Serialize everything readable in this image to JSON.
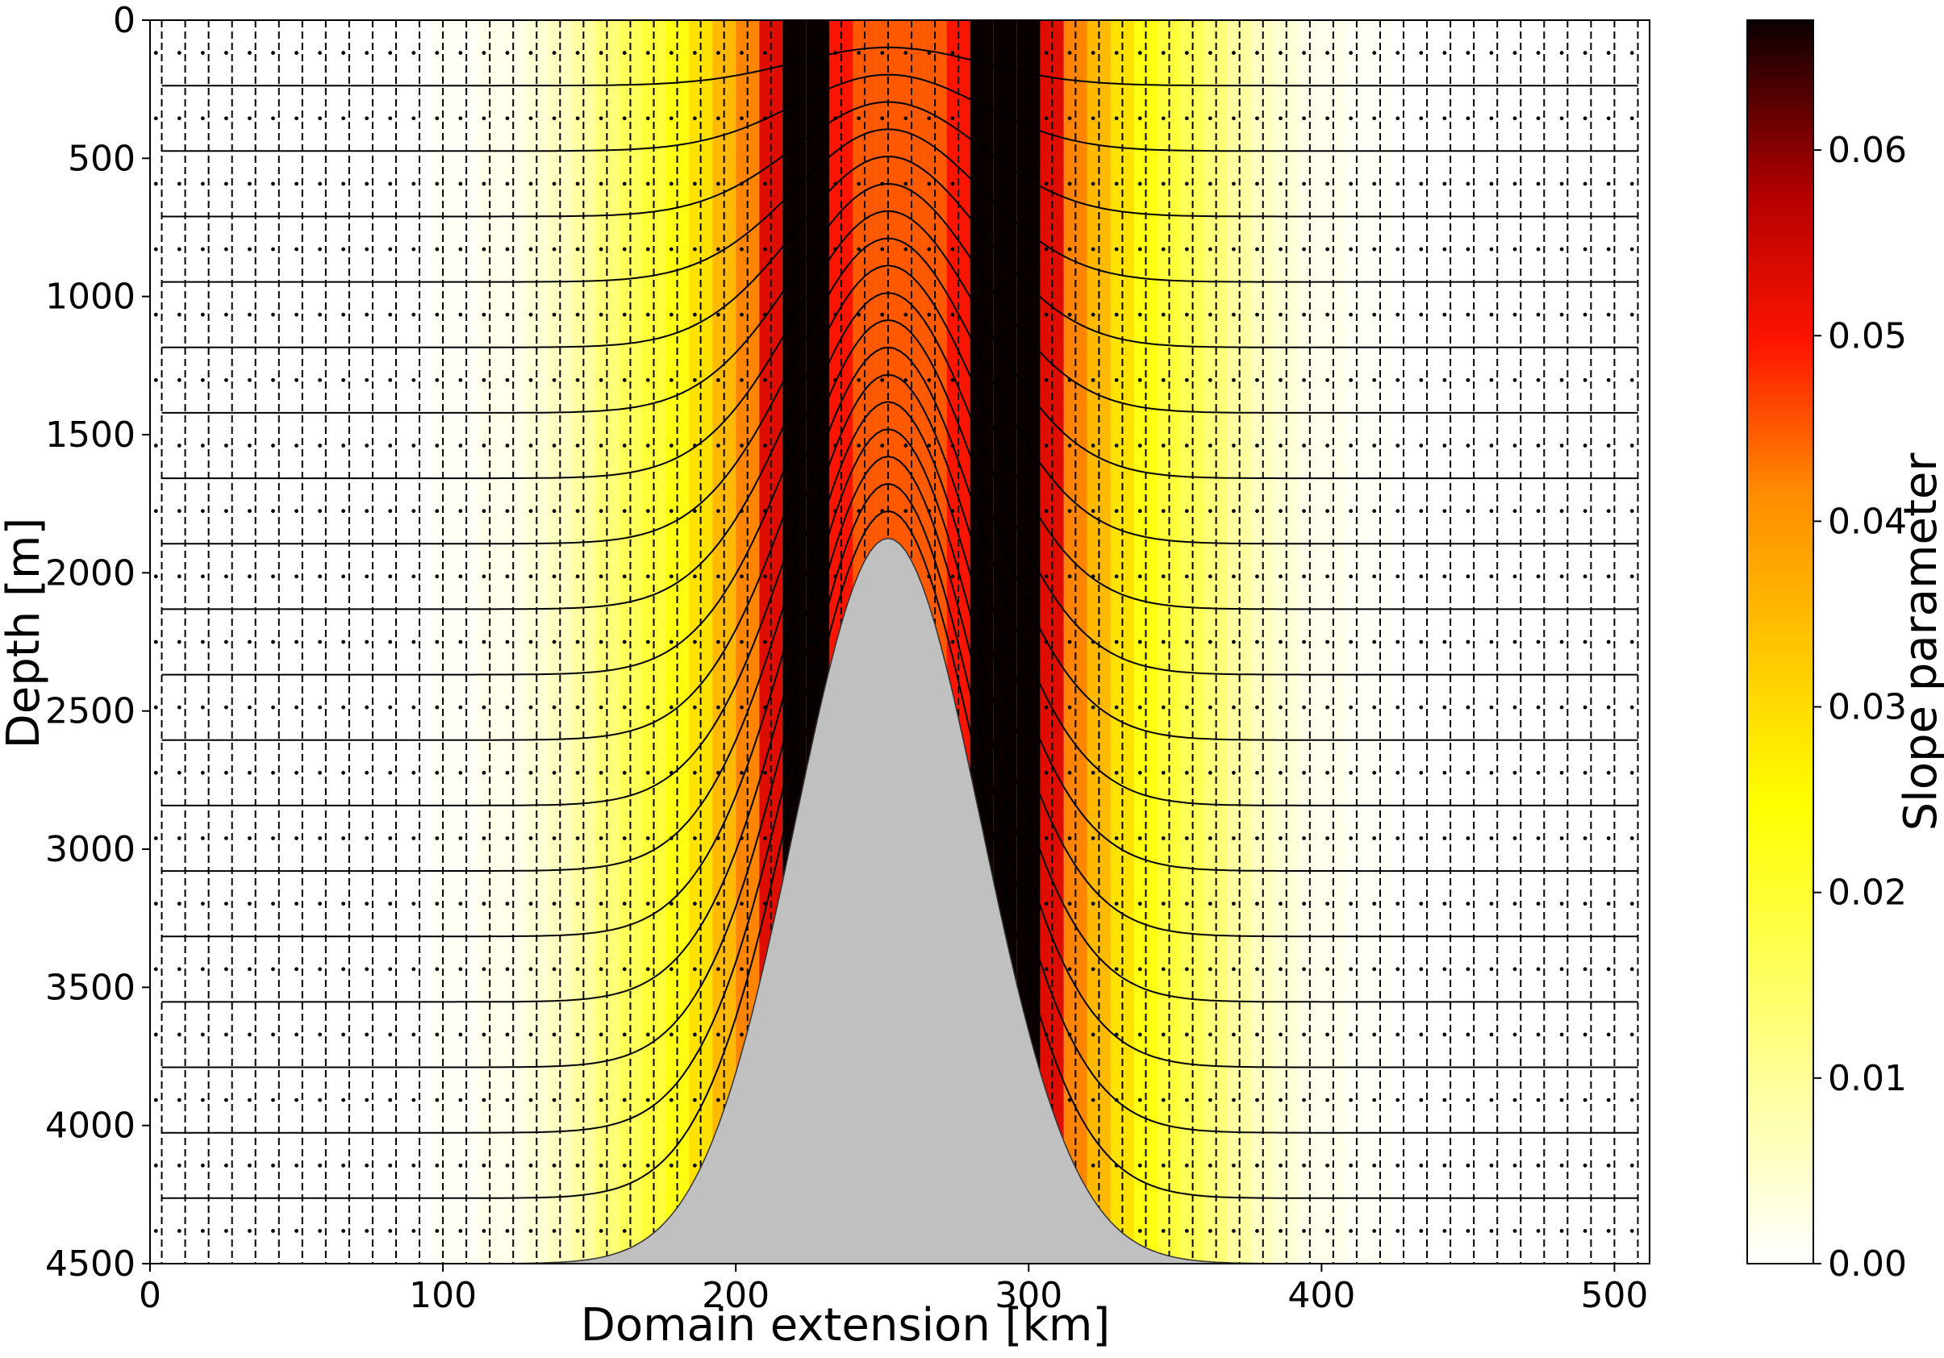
{
  "chart_data": {
    "type": "heatmap",
    "title": "",
    "xlabel": "Domain extension [km]",
    "ylabel": "Depth [m]",
    "colorbar_label": "Slope parameter",
    "xlim": [
      0,
      512
    ],
    "ylim": [
      4500,
      0
    ],
    "x_ticks": [
      0,
      100,
      200,
      300,
      400,
      500
    ],
    "x_tick_labels": [
      "0",
      "100",
      "200",
      "300",
      "400",
      "500"
    ],
    "y_ticks": [
      0,
      500,
      1000,
      1500,
      2000,
      2500,
      3000,
      3500,
      4000,
      4500
    ],
    "y_tick_labels": [
      "0",
      "500",
      "1000",
      "1500",
      "2000",
      "2500",
      "3000",
      "3500",
      "4000",
      "4500"
    ],
    "colorbar_range": [
      0,
      0.067
    ],
    "colorbar_ticks": [
      0.0,
      0.01,
      0.02,
      0.03,
      0.04,
      0.05,
      0.06
    ],
    "colorbar_tick_labels": [
      "0.00",
      "0.01",
      "0.02",
      "0.03",
      "0.04",
      "0.05",
      "0.06"
    ],
    "colormap": "hot_r",
    "terrain_color": "#c0c0c0",
    "seamount": {
      "center_km": 252,
      "bottom_depth_m": 4500,
      "peak_depth_m": 1875,
      "gaussian_width_km": 45
    },
    "grid": {
      "cell_width_km": 8,
      "n_columns": 64,
      "n_levels": 19,
      "level_spacing_m": 236.84
    },
    "column_slope_values": [
      0.0,
      0.0,
      0.0,
      0.0,
      0.0,
      0.0,
      0.0,
      0.0,
      0.0,
      0.0,
      0.0,
      0.0,
      0.001,
      0.001,
      0.002,
      0.002,
      0.004,
      0.006,
      0.009,
      0.013,
      0.016,
      0.019,
      0.023,
      0.029,
      0.035,
      0.042,
      0.053,
      0.067,
      0.067,
      0.05,
      0.045,
      0.045,
      0.045,
      0.045,
      0.05,
      0.067,
      0.067,
      0.067,
      0.053,
      0.042,
      0.035,
      0.029,
      0.023,
      0.019,
      0.016,
      0.013,
      0.009,
      0.006,
      0.004,
      0.002,
      0.002,
      0.001,
      0.001,
      0.0,
      0.0,
      0.0,
      0.0,
      0.0,
      0.0,
      0.0,
      0.0,
      0.0,
      0.0,
      0.0
    ]
  }
}
